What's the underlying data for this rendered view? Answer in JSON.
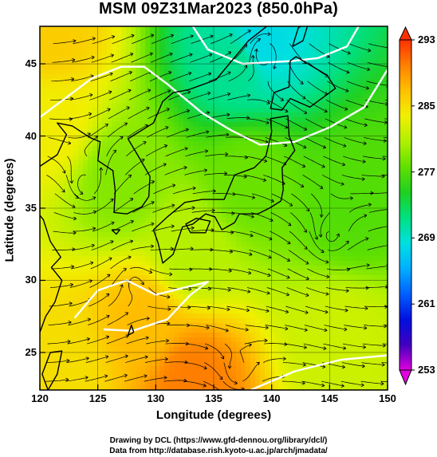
{
  "title": "MSM 09Z31Mar2023 (850.0hPa)",
  "x_axis": {
    "label": "Longitude (degrees)",
    "ticks": [
      "120",
      "125",
      "130",
      "135",
      "140",
      "145",
      "150"
    ],
    "range": [
      120,
      150
    ]
  },
  "y_axis": {
    "label": "Latitude  (degrees)",
    "ticks": [
      "25",
      "30",
      "35",
      "40",
      "45"
    ],
    "range": [
      22.4,
      47.6
    ]
  },
  "colorbar": {
    "ticks": [
      "253",
      "261",
      "269",
      "277",
      "285",
      "293"
    ],
    "range": [
      253,
      293
    ],
    "colors": [
      "#e000e0",
      "#4000c0",
      "#0010e0",
      "#0060ff",
      "#00b0ff",
      "#00e0e0",
      "#00e080",
      "#20d020",
      "#60e000",
      "#b0f000",
      "#f0f000",
      "#ffc000",
      "#ff8000",
      "#ff3000"
    ]
  },
  "credits": {
    "line1": "Drawing by DCL (https://www.gfd-dennou.org/library/dcl/)",
    "line2": "Data from http://database.rish.kyoto-u.ac.jp/arch/jmadata/"
  },
  "map": {
    "field": "temperature (K) with wind streamlines",
    "contour_color": "#ffffff",
    "coast_color": "#000000",
    "regions": [
      {
        "name": "cold-northeast",
        "lon": 139,
        "lat": 46.5,
        "temp": 268
      },
      {
        "name": "cold-north-center",
        "lon": 137,
        "lat": 45,
        "temp": 271
      },
      {
        "name": "warm-northwest",
        "lon": 121,
        "lat": 47,
        "temp": 286
      },
      {
        "name": "warm-west",
        "lon": 121,
        "lat": 41,
        "temp": 284
      },
      {
        "name": "mid-korea",
        "lon": 127,
        "lat": 37,
        "temp": 279
      },
      {
        "name": "mid-japan",
        "lon": 138,
        "lat": 37,
        "temp": 278
      },
      {
        "name": "mid-ocean-east",
        "lon": 147,
        "lat": 35,
        "temp": 277
      },
      {
        "name": "warm-south",
        "lon": 129,
        "lat": 27,
        "temp": 287
      },
      {
        "name": "hot-south",
        "lon": 133,
        "lat": 23,
        "temp": 290
      },
      {
        "name": "mid-south-east",
        "lon": 146,
        "lat": 26,
        "temp": 282
      },
      {
        "name": "warm-south-west",
        "lon": 122,
        "lat": 24,
        "temp": 285
      },
      {
        "name": "mid-center",
        "lon": 133,
        "lat": 32,
        "temp": 281
      }
    ]
  }
}
